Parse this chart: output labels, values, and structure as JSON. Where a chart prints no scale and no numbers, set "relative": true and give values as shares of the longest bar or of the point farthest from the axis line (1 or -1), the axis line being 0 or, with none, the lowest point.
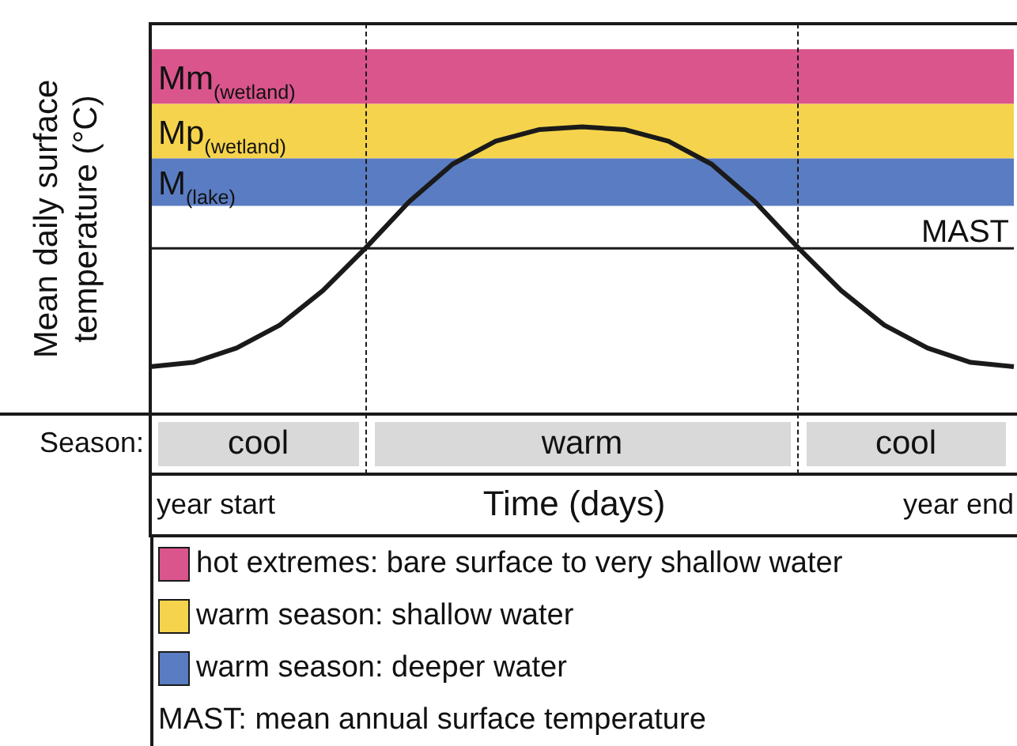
{
  "chart_data": {
    "type": "line",
    "relative": true,
    "xlabel": "Time (days)",
    "ylabel": "Mean daily surface temperature (°C)",
    "categories": [
      null,
      null,
      null,
      null,
      null,
      null,
      null,
      null,
      null,
      null,
      null,
      null,
      null,
      null,
      null,
      null,
      null,
      null,
      null,
      null,
      null
    ],
    "series": [
      {
        "color": "#1a1a1a",
        "values": [
          0.165,
          0.18,
          0.23,
          0.31,
          0.43,
          0.58,
          0.74,
          0.87,
          0.95,
          0.99,
          1,
          0.99,
          0.95,
          0.87,
          0.74,
          0.58,
          0.43,
          0.31,
          0.23,
          0.18,
          0.165
        ]
      }
    ],
    "ref_lines": [
      {
        "axis": "y",
        "value": 0.577,
        "label": "MAST",
        "color": "#1a1a1a",
        "line_style": "solid"
      }
    ],
    "bands": [
      {
        "axis": "y",
        "from": 1.08,
        "to": 1.27,
        "label": "Mm$_{(wetland)}$",
        "color": "#d9558c"
      },
      {
        "axis": "y",
        "from": 0.89,
        "to": 1.08,
        "label": "Mp$_{(wetland)}$",
        "color": "#f5d34c"
      },
      {
        "axis": "y",
        "from": 0.725,
        "to": 0.89,
        "label": "M$_{(lake)}$",
        "color": "#5a7cc2"
      }
    ],
    "annotations": [
      "Season:",
      "year start",
      "year end",
      "cool",
      "warm",
      "cool",
      "hot extremes: bare surface to very shallow water",
      "warm season: shallow water",
      "warm season: deeper water",
      "MAST: mean annual surface temperature"
    ]
  }
}
